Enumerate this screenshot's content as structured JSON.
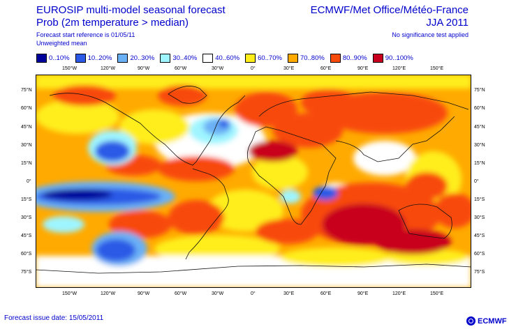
{
  "header": {
    "title_left": "EUROSIP multi-model seasonal forecast",
    "subtitle_left": "Prob (2m temperature > median)",
    "start_reference": "Forecast start reference is 01/05/11",
    "mean_type": "Unweighted mean",
    "title_right": "ECMWF/Met Office/Météo-France",
    "season": "JJA 2011",
    "significance_note": "No significance test applied"
  },
  "legend": [
    {
      "label": "0..10%",
      "color": "#00009a"
    },
    {
      "label": "10..20%",
      "color": "#2c5ae6"
    },
    {
      "label": "20..30%",
      "color": "#6ab0f5"
    },
    {
      "label": "30..40%",
      "color": "#9ff5ff"
    },
    {
      "label": "40..60%",
      "color": "#ffffff"
    },
    {
      "label": "60..70%",
      "color": "#ffee1a"
    },
    {
      "label": "70..80%",
      "color": "#ffaa00"
    },
    {
      "label": "80..90%",
      "color": "#f84a0a"
    },
    {
      "label": "90..100%",
      "color": "#c8001e"
    }
  ],
  "lon_labels": [
    "150°W",
    "120°W",
    "90°W",
    "60°W",
    "30°W",
    "0°",
    "30°E",
    "60°E",
    "90°E",
    "120°E",
    "150°E"
  ],
  "lat_labels": [
    "75°N",
    "60°N",
    "45°N",
    "30°N",
    "15°N",
    "0°",
    "15°S",
    "30°S",
    "45°S",
    "60°S",
    "75°S"
  ],
  "footer": {
    "issue_date": "Forecast issue date: 15/05/2011",
    "logo_text": "ECMWF"
  }
}
